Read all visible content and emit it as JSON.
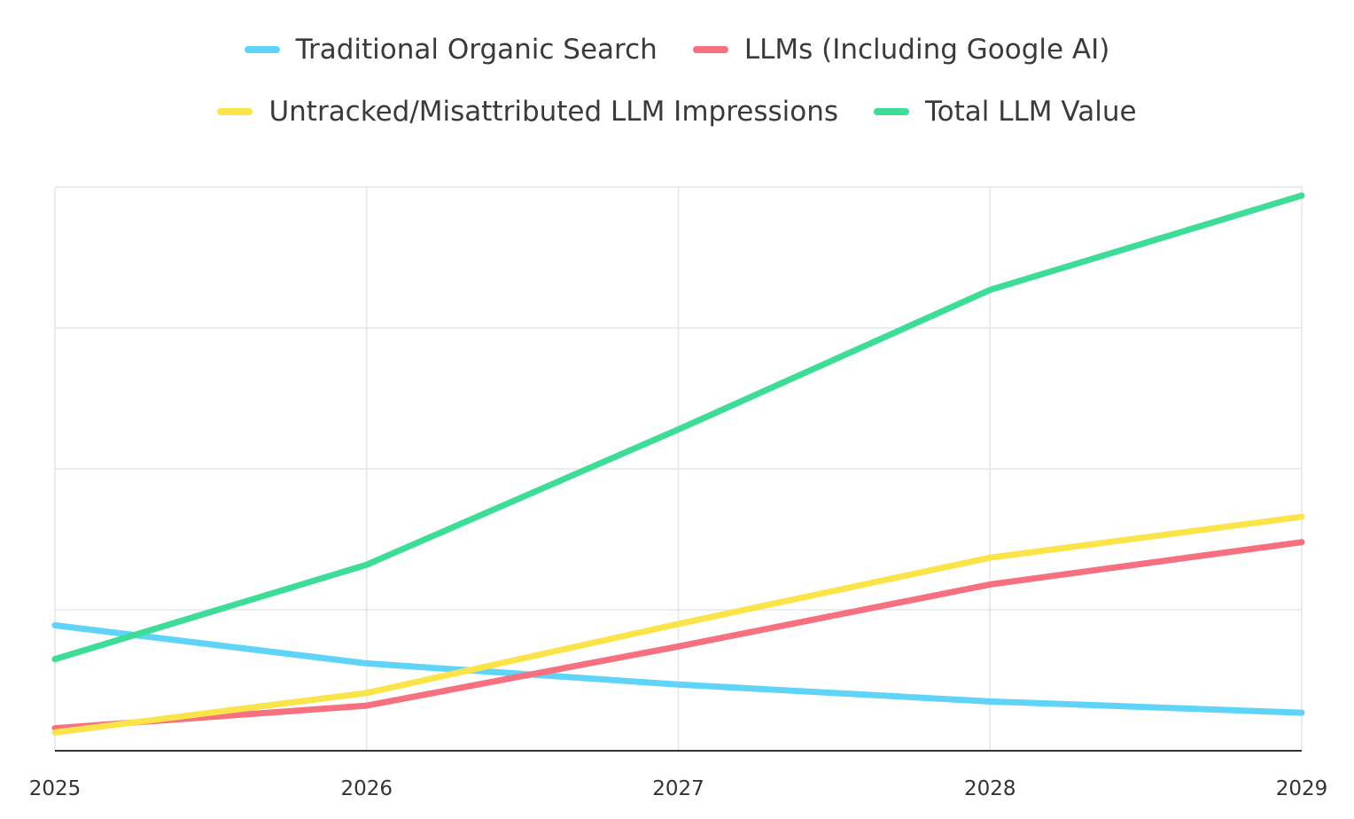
{
  "chart_data": {
    "type": "line",
    "title": "",
    "xlabel": "",
    "ylabel": "",
    "x": [
      "2025",
      "2026",
      "2027",
      "2028",
      "2029"
    ],
    "ylim": [
      0,
      4
    ],
    "grid": true,
    "legend_placement": "top-center",
    "series": [
      {
        "name": "Traditional Organic Search",
        "color": "#5fd4f8",
        "values": [
          0.89,
          0.62,
          0.47,
          0.35,
          0.27
        ]
      },
      {
        "name": "LLMs (Including Google AI)",
        "color": "#f7707f",
        "values": [
          0.16,
          0.32,
          0.74,
          1.18,
          1.48
        ]
      },
      {
        "name": "Untracked/Misattributed LLM Impressions",
        "color": "#fbe34a",
        "values": [
          0.13,
          0.41,
          0.9,
          1.37,
          1.66
        ]
      },
      {
        "name": "Total LLM Value",
        "color": "#3ddc97",
        "values": [
          0.65,
          1.32,
          2.28,
          3.27,
          3.94
        ]
      }
    ]
  }
}
